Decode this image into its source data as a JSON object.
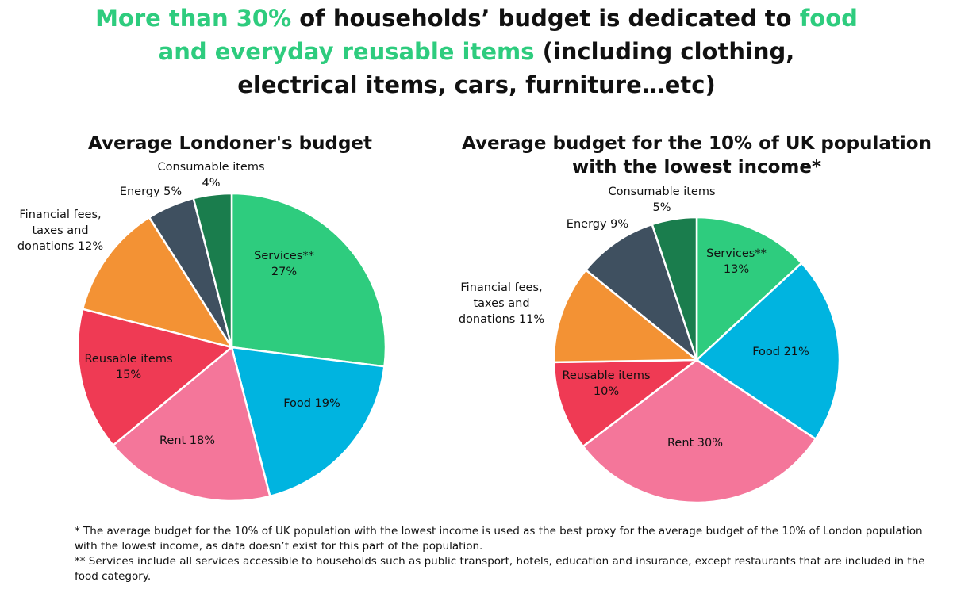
{
  "headline": {
    "part1": "More than 30%",
    "part2": " of households’ budget is dedicated to ",
    "part3": "food",
    "part4": "and everyday reusable items",
    "part5": " (including clothing,",
    "part6": "electrical items, cars, furniture…etc)"
  },
  "colors": {
    "accent": "#2ecc7e",
    "services": "#2ecc7e",
    "food": "#00b4e0",
    "rent": "#f4769a",
    "reusable": "#ef3a54",
    "financial": "#f39234",
    "energy": "#3f5060",
    "consumable": "#1a7d4d"
  },
  "chart_data": [
    {
      "type": "pie",
      "title": "Average Londoner's budget",
      "slices": [
        {
          "key": "services",
          "lines": [
            "Services**",
            "27%"
          ],
          "value": 27
        },
        {
          "key": "food",
          "lines": [
            "Food 19%"
          ],
          "value": 19
        },
        {
          "key": "rent",
          "lines": [
            "Rent 18%"
          ],
          "value": 18
        },
        {
          "key": "reusable",
          "lines": [
            "Reusable items",
            "15%"
          ],
          "value": 15
        },
        {
          "key": "financial",
          "lines": [
            "Financial fees,",
            "taxes and",
            "donations 12%"
          ],
          "value": 12
        },
        {
          "key": "energy",
          "lines": [
            "Energy 5%"
          ],
          "value": 5
        },
        {
          "key": "consumable",
          "lines": [
            "Consumable items",
            "4%"
          ],
          "value": 4
        }
      ]
    },
    {
      "type": "pie",
      "title": "Average budget for the 10% of UK population with the lowest income*",
      "title_lines": [
        "Average budget for the 10% of UK population",
        "with the lowest income*"
      ],
      "slices": [
        {
          "key": "services",
          "lines": [
            "Services**",
            "13%"
          ],
          "value": 13
        },
        {
          "key": "food",
          "lines": [
            "Food 21%"
          ],
          "value": 21
        },
        {
          "key": "rent",
          "lines": [
            "Rent 30%"
          ],
          "value": 30
        },
        {
          "key": "reusable",
          "lines": [
            "Reusable items",
            "10%"
          ],
          "value": 10
        },
        {
          "key": "financial",
          "lines": [
            "Financial fees,",
            "taxes and",
            "donations 11%"
          ],
          "value": 11
        },
        {
          "key": "energy",
          "lines": [
            "Energy 9%"
          ],
          "value": 9
        },
        {
          "key": "consumable",
          "lines": [
            "Consumable items",
            "5%"
          ],
          "value": 5
        }
      ]
    }
  ],
  "footnotes": {
    "note1": "* The average budget for the 10% of UK population with the lowest income is used as the best proxy for the average budget of the 10% of London population with the lowest income, as data doesn’t exist for this part of the population.",
    "note2": "** Services include all services accessible to households such as public transport, hotels, education and insurance, except restaurants that are included in the food category."
  }
}
